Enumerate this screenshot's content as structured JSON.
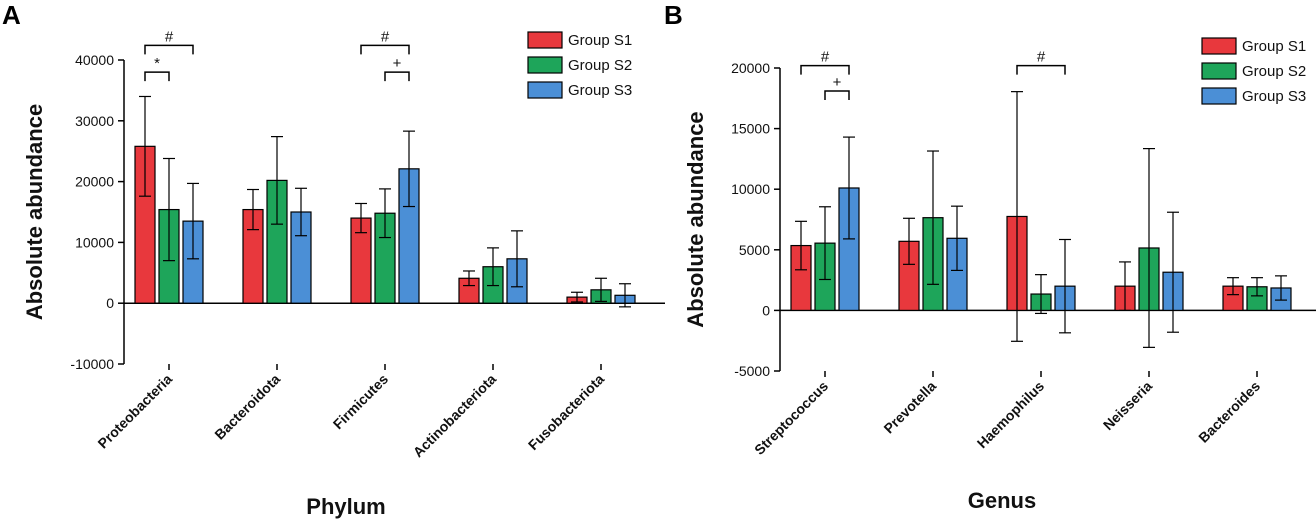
{
  "chart_data": [
    {
      "panel": "A",
      "type": "bar",
      "title": "",
      "xlabel": "Phylum",
      "ylabel": "Absolute abundance",
      "ylim": [
        -10000,
        40000
      ],
      "yticks": [
        -10000,
        0,
        10000,
        20000,
        30000,
        40000
      ],
      "ytick_labels": [
        "-10000",
        "0",
        "10000",
        "20000",
        "30000",
        "40000"
      ],
      "categories": [
        "Proteobacteria",
        "Bacteroidota",
        "Firmicutes",
        "Actinobacteriota",
        "Fusobacteriota"
      ],
      "series": [
        {
          "name": "Group S1",
          "color": "#e8383d",
          "values": [
            25800,
            15400,
            14000,
            4100,
            1000
          ],
          "errors": [
            8200,
            3300,
            2400,
            1200,
            800
          ]
        },
        {
          "name": "Group S2",
          "color": "#1ea55a",
          "values": [
            15400,
            20200,
            14800,
            6000,
            2200
          ],
          "errors": [
            8400,
            7200,
            4000,
            3100,
            1900
          ]
        },
        {
          "name": "Group S3",
          "color": "#4b8fd6",
          "values": [
            13500,
            15000,
            22100,
            7300,
            1300
          ],
          "errors": [
            6200,
            3900,
            6200,
            4600,
            1900
          ]
        }
      ],
      "legend_position": "top-right",
      "annotations": [
        {
          "label": "*",
          "category": 0,
          "from_series": 0,
          "to_series": 1,
          "level": 38000
        },
        {
          "label": "#",
          "category": 0,
          "from_series": 0,
          "to_series": 2,
          "level": 42400
        },
        {
          "label": "+",
          "category": 2,
          "from_series": 1,
          "to_series": 2,
          "level": 38000
        },
        {
          "label": "#",
          "category": 2,
          "from_series": 0,
          "to_series": 2,
          "level": 42400
        }
      ]
    },
    {
      "panel": "B",
      "type": "bar",
      "title": "",
      "xlabel": "Genus",
      "ylabel": "Absolute abundance",
      "ylim": [
        -5000,
        20000
      ],
      "yticks": [
        -5000,
        0,
        5000,
        10000,
        15000,
        20000
      ],
      "ytick_labels": [
        "-5000",
        "0",
        "5000",
        "10000",
        "15000",
        "20000"
      ],
      "categories": [
        "Streptococcus",
        "Prevotella",
        "Haemophilus",
        "Neisseria",
        "Bacteroides"
      ],
      "series": [
        {
          "name": "Group S1",
          "color": "#e8383d",
          "values": [
            5350,
            5700,
            7750,
            2000,
            2000
          ],
          "errors": [
            2000,
            1900,
            10300,
            2000,
            700
          ]
        },
        {
          "name": "Group S2",
          "color": "#1ea55a",
          "values": [
            5550,
            7650,
            1350,
            5150,
            1950
          ],
          "errors": [
            3000,
            5500,
            1600,
            8200,
            750
          ]
        },
        {
          "name": "Group S3",
          "color": "#4b8fd6",
          "values": [
            10100,
            5950,
            2000,
            3150,
            1850
          ],
          "errors": [
            4200,
            2650,
            3850,
            4950,
            1000
          ]
        }
      ],
      "legend_position": "top-right",
      "annotations": [
        {
          "label": "+",
          "category": 0,
          "from_series": 1,
          "to_series": 2,
          "level": 18100
        },
        {
          "label": "#",
          "category": 0,
          "from_series": 0,
          "to_series": 2,
          "level": 20200
        },
        {
          "label": "#",
          "category": 2,
          "from_series": 0,
          "to_series": 2,
          "level": 20200
        }
      ]
    }
  ]
}
